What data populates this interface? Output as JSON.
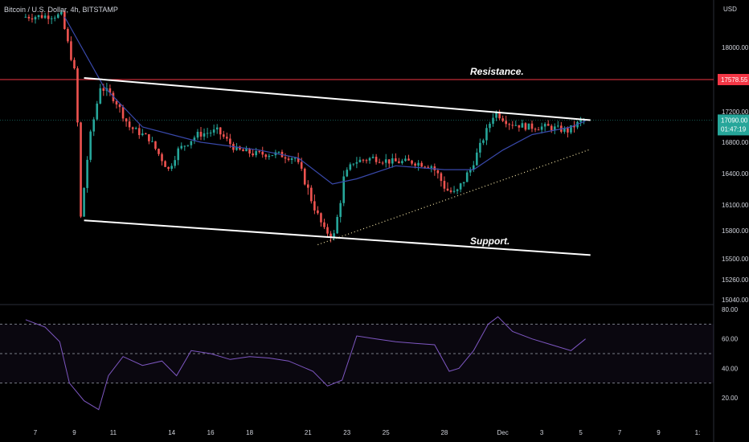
{
  "header": {
    "title": "Bitcoin / U.S. Dollar, 4h, BITSTAMP",
    "currency": "USD"
  },
  "colors": {
    "up": "#26a69a",
    "down": "#ef5350",
    "ma": "#3949ab",
    "rsi": "#7e57c2",
    "resistance_line": "#f23645",
    "current_price": "#26a69a",
    "trend_lines": "#ffffff",
    "dotted_support": "#f5e6a8"
  },
  "chart_data": {
    "type": "candlestick",
    "symbol": "Bitcoin / U.S. Dollar",
    "timeframe": "4h",
    "exchange": "BITSTAMP",
    "price_axis": {
      "range": [
        15000,
        18500
      ],
      "ticks": [
        "18000.00",
        "17200.00",
        "16800.00",
        "16400.00",
        "16100.00",
        "15800.00",
        "15500.00",
        "15260.00",
        "15040.00"
      ]
    },
    "date_axis": {
      "range": [
        "2022-11-06",
        "2022-12-12"
      ],
      "ticks": [
        {
          "label": "7",
          "date": "2022-11-07"
        },
        {
          "label": "9",
          "date": "2022-11-09"
        },
        {
          "label": "11",
          "date": "2022-11-11"
        },
        {
          "label": "14",
          "date": "2022-11-14"
        },
        {
          "label": "16",
          "date": "2022-11-16"
        },
        {
          "label": "18",
          "date": "2022-11-18"
        },
        {
          "label": "21",
          "date": "2022-11-21"
        },
        {
          "label": "23",
          "date": "2022-11-23"
        },
        {
          "label": "25",
          "date": "2022-11-25"
        },
        {
          "label": "28",
          "date": "2022-11-28"
        },
        {
          "label": "Dec",
          "date": "2022-12-01"
        },
        {
          "label": "3",
          "date": "2022-12-03"
        },
        {
          "label": "5",
          "date": "2022-12-05"
        },
        {
          "label": "7",
          "date": "2022-12-07"
        },
        {
          "label": "9",
          "date": "2022-12-09"
        },
        {
          "label": "1:",
          "date": "2022-12-11"
        }
      ]
    },
    "horizontal_levels": [
      {
        "price": 17578.55,
        "label": "17578.55",
        "kind": "resistance"
      },
      {
        "price": 17090.0,
        "label": "17090.00",
        "countdown": "01:47:19",
        "kind": "current"
      }
    ],
    "trend_lines": [
      {
        "name": "Resistance.",
        "from": {
          "date": "2022-11-09 12:00",
          "price": 17600
        },
        "to": {
          "date": "2022-12-05 12:00",
          "price": 17090
        }
      },
      {
        "name": "Support.",
        "from": {
          "date": "2022-11-09 12:00",
          "price": 15920
        },
        "to": {
          "date": "2022-12-05 12:00",
          "price": 15540
        }
      },
      {
        "name": "",
        "style": "dotted",
        "from": {
          "date": "2022-11-21 12:00",
          "price": 15650
        },
        "to": {
          "date": "2022-12-05 12:00",
          "price": 16710
        }
      }
    ],
    "candles_path": [
      {
        "date": "2022-11-06 12:00",
        "price": 18400
      },
      {
        "date": "2022-11-08 12:00",
        "price": 18420
      },
      {
        "date": "2022-11-09 06:00",
        "price": 17600
      },
      {
        "date": "2022-11-09 12:00",
        "price": 15950
      },
      {
        "date": "2022-11-10 00:00",
        "price": 16900
      },
      {
        "date": "2022-11-10 12:00",
        "price": 17500
      },
      {
        "date": "2022-11-11 06:00",
        "price": 17350
      },
      {
        "date": "2022-11-12 00:00",
        "price": 17000
      },
      {
        "date": "2022-11-13 00:00",
        "price": 16850
      },
      {
        "date": "2022-11-14 00:00",
        "price": 16450
      },
      {
        "date": "2022-11-14 12:00",
        "price": 16700
      },
      {
        "date": "2022-11-15 12:00",
        "price": 16900
      },
      {
        "date": "2022-11-16 12:00",
        "price": 16950
      },
      {
        "date": "2022-11-17 12:00",
        "price": 16700
      },
      {
        "date": "2022-11-18 12:00",
        "price": 16650
      },
      {
        "date": "2022-11-19 12:00",
        "price": 16650
      },
      {
        "date": "2022-11-20 12:00",
        "price": 16600
      },
      {
        "date": "2022-11-21 06:00",
        "price": 16200
      },
      {
        "date": "2022-11-22 00:00",
        "price": 15800
      },
      {
        "date": "2022-11-22 12:00",
        "price": 15750
      },
      {
        "date": "2022-11-23 00:00",
        "price": 16350
      },
      {
        "date": "2022-11-23 12:00",
        "price": 16550
      },
      {
        "date": "2022-11-24 12:00",
        "price": 16600
      },
      {
        "date": "2022-11-25 12:00",
        "price": 16550
      },
      {
        "date": "2022-11-26 12:00",
        "price": 16550
      },
      {
        "date": "2022-11-27 12:00",
        "price": 16500
      },
      {
        "date": "2022-11-28 06:00",
        "price": 16250
      },
      {
        "date": "2022-11-28 18:00",
        "price": 16200
      },
      {
        "date": "2022-11-29 12:00",
        "price": 16450
      },
      {
        "date": "2022-11-30 06:00",
        "price": 16900
      },
      {
        "date": "2022-11-30 18:00",
        "price": 17200
      },
      {
        "date": "2022-12-01 12:00",
        "price": 17050
      },
      {
        "date": "2022-12-02 12:00",
        "price": 17000
      },
      {
        "date": "2022-12-03 12:00",
        "price": 17000
      },
      {
        "date": "2022-12-04 12:00",
        "price": 16950
      },
      {
        "date": "2022-12-05 06:00",
        "price": 17090
      }
    ],
    "moving_average": [
      {
        "date": "2022-11-08 12:00",
        "price": 18400
      },
      {
        "date": "2022-11-10 12:00",
        "price": 17500
      },
      {
        "date": "2022-11-12 12:00",
        "price": 17000
      },
      {
        "date": "2022-11-15 12:00",
        "price": 16800
      },
      {
        "date": "2022-11-18 12:00",
        "price": 16700
      },
      {
        "date": "2022-11-20 12:00",
        "price": 16600
      },
      {
        "date": "2022-11-22 06:00",
        "price": 16300
      },
      {
        "date": "2022-11-23 12:00",
        "price": 16350
      },
      {
        "date": "2022-11-25 12:00",
        "price": 16500
      },
      {
        "date": "2022-11-28 00:00",
        "price": 16450
      },
      {
        "date": "2022-11-29 12:00",
        "price": 16450
      },
      {
        "date": "2022-12-01 00:00",
        "price": 16700
      },
      {
        "date": "2022-12-02 12:00",
        "price": 16900
      },
      {
        "date": "2022-12-04 12:00",
        "price": 17000
      },
      {
        "date": "2022-12-05 06:00",
        "price": 17080
      }
    ],
    "rsi": {
      "range": [
        10,
        85
      ],
      "ticks": [
        "80.00",
        "60.00",
        "40.00",
        "20.00"
      ],
      "bands": [
        70,
        50,
        30
      ],
      "points": [
        {
          "date": "2022-11-06 12:00",
          "value": 73
        },
        {
          "date": "2022-11-07 12:00",
          "value": 68
        },
        {
          "date": "2022-11-08 06:00",
          "value": 58
        },
        {
          "date": "2022-11-08 18:00",
          "value": 30
        },
        {
          "date": "2022-11-09 12:00",
          "value": 18
        },
        {
          "date": "2022-11-10 06:00",
          "value": 12
        },
        {
          "date": "2022-11-10 18:00",
          "value": 35
        },
        {
          "date": "2022-11-11 12:00",
          "value": 48
        },
        {
          "date": "2022-11-12 12:00",
          "value": 42
        },
        {
          "date": "2022-11-13 12:00",
          "value": 45
        },
        {
          "date": "2022-11-14 06:00",
          "value": 35
        },
        {
          "date": "2022-11-15 00:00",
          "value": 52
        },
        {
          "date": "2022-11-16 00:00",
          "value": 50
        },
        {
          "date": "2022-11-17 00:00",
          "value": 46
        },
        {
          "date": "2022-11-18 00:00",
          "value": 48
        },
        {
          "date": "2022-11-19 00:00",
          "value": 47
        },
        {
          "date": "2022-11-20 00:00",
          "value": 45
        },
        {
          "date": "2022-11-21 06:00",
          "value": 38
        },
        {
          "date": "2022-11-22 00:00",
          "value": 28
        },
        {
          "date": "2022-11-22 18:00",
          "value": 32
        },
        {
          "date": "2022-11-23 12:00",
          "value": 62
        },
        {
          "date": "2022-11-24 12:00",
          "value": 60
        },
        {
          "date": "2022-11-25 12:00",
          "value": 58
        },
        {
          "date": "2022-11-26 12:00",
          "value": 57
        },
        {
          "date": "2022-11-27 12:00",
          "value": 56
        },
        {
          "date": "2022-11-28 06:00",
          "value": 38
        },
        {
          "date": "2022-11-28 18:00",
          "value": 40
        },
        {
          "date": "2022-11-29 12:00",
          "value": 52
        },
        {
          "date": "2022-11-30 06:00",
          "value": 70
        },
        {
          "date": "2022-11-30 18:00",
          "value": 75
        },
        {
          "date": "2022-12-01 12:00",
          "value": 65
        },
        {
          "date": "2022-12-02 12:00",
          "value": 60
        },
        {
          "date": "2022-12-03 12:00",
          "value": 56
        },
        {
          "date": "2022-12-04 12:00",
          "value": 52
        },
        {
          "date": "2022-12-05 06:00",
          "value": 60
        }
      ]
    },
    "annotations": [
      "Resistance.",
      "Support."
    ]
  }
}
